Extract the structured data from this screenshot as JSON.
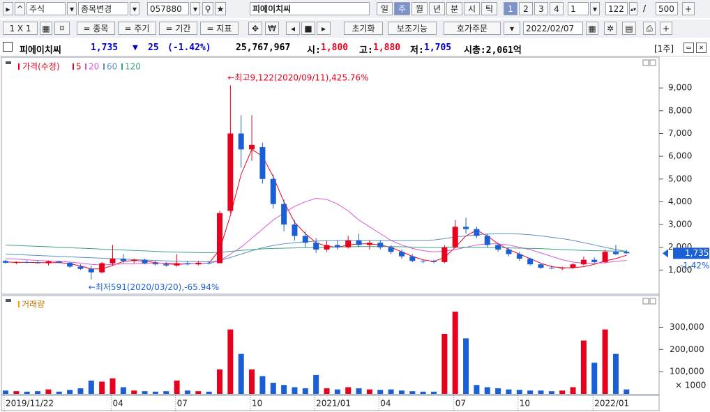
{
  "toolbar": {
    "market": "주식",
    "change_stock": "종목변경",
    "code": "057880",
    "name": "피에이치씨",
    "periods": [
      "일",
      "주",
      "월",
      "년",
      "분",
      "시",
      "틱"
    ],
    "slots": [
      "1",
      "2",
      "3",
      "4"
    ],
    "count_unit": "1",
    "visible_count": "122",
    "separator": "/",
    "total": "500"
  },
  "toolbar2": {
    "layout": "1 X 1",
    "filters": [
      "= 종목",
      "= 주기",
      "= 기간",
      "= 지표"
    ],
    "reset": "초기화",
    "aux": "보조기능",
    "order": "호가주문",
    "date": "2022/02/07"
  },
  "info": {
    "name": "피에이치씨",
    "price": "1,735",
    "arrow": "▼",
    "change": "25",
    "pct": "(-1.42%)",
    "volume": "25,767,967",
    "open_label": "시:",
    "open": "1,800",
    "high_label": "고:",
    "high": "1,880",
    "low_label": "저:",
    "low": "1,705",
    "mcap": "시총:2,061억",
    "period": "[1주]"
  },
  "chart_data": [
    {
      "type": "candlestick",
      "legend_title": "가격(수정)",
      "categories": [
        "2019/11/22",
        null,
        null,
        null,
        null,
        null,
        null,
        null,
        null,
        null,
        "04",
        null,
        null,
        null,
        null,
        null,
        "07",
        null,
        null,
        null,
        null,
        null,
        null,
        "10",
        null,
        null,
        null,
        null,
        null,
        "2021/01",
        null,
        null,
        null,
        null,
        null,
        "04",
        null,
        null,
        null,
        null,
        null,
        null,
        "07",
        null,
        null,
        null,
        null,
        null,
        "10",
        null,
        null,
        null,
        null,
        null,
        null,
        "2022/01",
        null,
        null,
        null
      ],
      "open": [
        1400,
        1320,
        1350,
        1330,
        1300,
        1380,
        1320,
        1150,
        1050,
        900,
        1300,
        1500,
        1400,
        1450,
        1300,
        1250,
        1200,
        1300,
        1250,
        1320,
        1300,
        3600,
        7000,
        6300,
        6400,
        5000,
        3900,
        3000,
        2500,
        2200,
        1900,
        2100,
        2000,
        2300,
        2100,
        2200,
        2000,
        1800,
        1600,
        1400,
        1380,
        1350,
        2000,
        2900,
        2800,
        2500,
        2100,
        1900,
        1700,
        1500,
        1250,
        1100,
        1080,
        1100,
        1250,
        1450,
        1350,
        1800,
        1800
      ],
      "high": [
        1450,
        1380,
        1420,
        1400,
        1420,
        1400,
        1350,
        1250,
        1200,
        1350,
        2100,
        1700,
        1500,
        1500,
        1400,
        1350,
        1700,
        1400,
        1400,
        1400,
        3600,
        9122,
        7800,
        7800,
        6600,
        5200,
        4100,
        3200,
        2700,
        2400,
        2300,
        2300,
        2500,
        2600,
        2300,
        2300,
        2100,
        1900,
        1700,
        1450,
        1450,
        2100,
        3200,
        3300,
        2900,
        2600,
        2200,
        2000,
        1800,
        1550,
        1300,
        1200,
        1150,
        1300,
        1600,
        1550,
        1900,
        2100,
        1880
      ],
      "low": [
        1280,
        1250,
        1300,
        1280,
        1200,
        1300,
        1100,
        1000,
        591,
        850,
        1200,
        1300,
        1300,
        1250,
        1200,
        1150,
        1150,
        1200,
        1200,
        1250,
        1300,
        3500,
        5500,
        5800,
        4800,
        3700,
        2700,
        2300,
        2000,
        1750,
        1800,
        1900,
        1950,
        2000,
        1900,
        1900,
        1700,
        1500,
        1350,
        1300,
        1300,
        1300,
        1950,
        2600,
        2400,
        2000,
        1800,
        1600,
        1400,
        1200,
        1050,
        1050,
        1000,
        1050,
        1200,
        1300,
        1300,
        1650,
        1705
      ],
      "close": [
        1320,
        1350,
        1330,
        1300,
        1380,
        1320,
        1150,
        1050,
        900,
        1300,
        1500,
        1400,
        1450,
        1300,
        1250,
        1200,
        1300,
        1250,
        1320,
        1300,
        3500,
        7000,
        6300,
        6500,
        5000,
        3900,
        3000,
        2500,
        2200,
        1900,
        2100,
        2000,
        2300,
        2100,
        2200,
        2000,
        1800,
        1600,
        1400,
        1380,
        1350,
        2000,
        2900,
        2800,
        2500,
        2100,
        1900,
        1700,
        1500,
        1250,
        1100,
        1080,
        1100,
        1250,
        1450,
        1350,
        1800,
        1700,
        1735
      ],
      "up_color": "#e8001c",
      "down_color": "#1a5fd6",
      "series": [
        {
          "name": "5",
          "color": "#e8001c",
          "values": [
            1350,
            1340,
            1335,
            1330,
            1320,
            1330,
            1280,
            1180,
            1050,
            1050,
            1200,
            1380,
            1420,
            1390,
            1330,
            1270,
            1250,
            1270,
            1290,
            1300,
            1900,
            3400,
            5200,
            6300,
            6000,
            5100,
            4000,
            3100,
            2600,
            2200,
            2050,
            2000,
            2100,
            2150,
            2150,
            2100,
            2000,
            1800,
            1600,
            1450,
            1380,
            1550,
            2000,
            2500,
            2750,
            2500,
            2150,
            1900,
            1700,
            1500,
            1300,
            1150,
            1100,
            1100,
            1150,
            1250,
            1400,
            1500,
            1650
          ]
        },
        {
          "name": "20",
          "color": "#d65ad6",
          "values": [
            1500,
            1480,
            1450,
            1420,
            1400,
            1380,
            1350,
            1300,
            1250,
            1220,
            1250,
            1270,
            1280,
            1290,
            1300,
            1300,
            1280,
            1280,
            1290,
            1300,
            1400,
            1700,
            2000,
            2400,
            2800,
            3200,
            3500,
            3800,
            4000,
            4150,
            4100,
            3900,
            3600,
            3200,
            2900,
            2600,
            2300,
            2100,
            1950,
            1850,
            1800,
            1830,
            1900,
            2000,
            2100,
            2150,
            2150,
            2100,
            2000,
            1900,
            1750,
            1600,
            1450,
            1350,
            1300,
            1300,
            1320,
            1380,
            1420
          ]
        },
        {
          "name": "60",
          "color": "#5a8fc0",
          "values": [
            1700,
            1680,
            1660,
            1640,
            1620,
            1600,
            1580,
            1560,
            1540,
            1520,
            1500,
            1480,
            1460,
            1440,
            1420,
            1400,
            1390,
            1380,
            1370,
            1360,
            1420,
            1550,
            1700,
            1850,
            1980,
            2080,
            2150,
            2200,
            2240,
            2270,
            2290,
            2300,
            2300,
            2300,
            2300,
            2300,
            2300,
            2300,
            2300,
            2300,
            2320,
            2380,
            2450,
            2500,
            2550,
            2580,
            2600,
            2600,
            2580,
            2550,
            2500,
            2440,
            2380,
            2300,
            2200,
            2100,
            2000,
            1900,
            1820
          ]
        },
        {
          "name": "120",
          "color": "#3ea080",
          "values": [
            2100,
            2080,
            2060,
            2040,
            2020,
            2000,
            1980,
            1960,
            1940,
            1920,
            1900,
            1880,
            1860,
            1840,
            1820,
            1800,
            1790,
            1780,
            1770,
            1760,
            1780,
            1820,
            1860,
            1900,
            1930,
            1950,
            1960,
            1970,
            1980,
            1990,
            2000,
            2010,
            2020,
            2030,
            2030,
            2030,
            2030,
            2020,
            2010,
            2000,
            1990,
            1990,
            2000,
            2000,
            2000,
            1990,
            1980,
            1970,
            1960,
            1950,
            1940,
            1920,
            1900,
            1880,
            1860,
            1850,
            1840,
            1830,
            1820
          ]
        }
      ],
      "ylim": [
        0,
        10200
      ],
      "yticks": [
        {
          "value": 1000,
          "label": "1,000"
        },
        {
          "value": 2000,
          "label": "2,000"
        },
        {
          "value": 3000,
          "label": "3,000"
        },
        {
          "value": 4000,
          "label": "4,000"
        },
        {
          "value": 5000,
          "label": "5,000"
        },
        {
          "value": 6000,
          "label": "6,000"
        },
        {
          "value": 7000,
          "label": "7,000"
        },
        {
          "value": 8000,
          "label": "8,000"
        },
        {
          "value": 9000,
          "label": "9,000"
        }
      ],
      "annotations": [
        {
          "index": 21,
          "value": 9122,
          "text": "←최고9,122(2020/09/11),425.76%"
        },
        {
          "index": 8,
          "value": 591,
          "text": "←최저591(2020/03/20),-65.94%"
        }
      ],
      "last_value": 1735,
      "last_label": "1,735",
      "last_change": "-1.42%"
    },
    {
      "type": "bar",
      "legend_title": "거래량",
      "values": [
        15000,
        12000,
        10000,
        12000,
        20000,
        10000,
        18000,
        25000,
        60000,
        55000,
        70000,
        30000,
        15000,
        12000,
        10000,
        12000,
        60000,
        15000,
        12000,
        10000,
        110000,
        290000,
        180000,
        110000,
        80000,
        50000,
        40000,
        30000,
        25000,
        85000,
        25000,
        20000,
        30000,
        25000,
        20000,
        18000,
        20000,
        15000,
        12000,
        10000,
        10000,
        270000,
        370000,
        250000,
        40000,
        30000,
        25000,
        20000,
        18000,
        15000,
        15000,
        12000,
        15000,
        30000,
        240000,
        140000,
        290000,
        180000,
        20000
      ],
      "ylim": [
        0,
        430000
      ],
      "yticks": [
        {
          "value": 100000,
          "label": "100,000"
        },
        {
          "value": 200000,
          "label": "200,000"
        },
        {
          "value": 300000,
          "label": "300,000"
        }
      ],
      "unit_label": "× 1000"
    }
  ]
}
